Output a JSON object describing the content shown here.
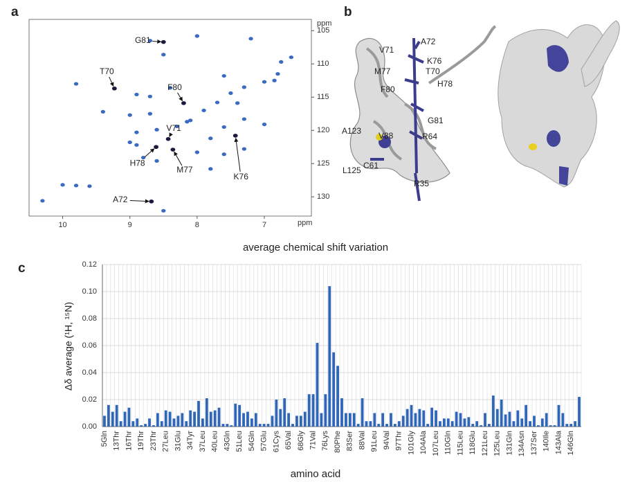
{
  "panel_labels": {
    "a": "a",
    "b": "b",
    "c": "c"
  },
  "structure": {
    "labels": [
      "V71",
      "A72",
      "K76",
      "M77",
      "T70",
      "H78",
      "F80",
      "G81",
      "A123",
      "V88",
      "R64",
      "C61",
      "L125",
      "R35"
    ]
  },
  "chart_data": [
    {
      "type": "scatter",
      "x_unit": "ppm",
      "y_unit": "ppm",
      "color": "#3a6bc0",
      "xlim": [
        10.5,
        6.3
      ],
      "ylim": [
        103.3,
        132.9
      ],
      "xticks": [
        10,
        9,
        8,
        7
      ],
      "yticks": [
        105,
        110,
        115,
        120,
        125,
        130
      ],
      "x": [
        10.3,
        10.0,
        9.8,
        9.6,
        9.8,
        9.4,
        9.23,
        8.7,
        8.5,
        8.5,
        8.0,
        7.2,
        6.6,
        6.75,
        6.8,
        6.85,
        7.0,
        7.3,
        7.6,
        7.5,
        7.7,
        7.9,
        8.1,
        8.3,
        8.6,
        8.9,
        9.0,
        8.9,
        8.7,
        8.4,
        8.2,
        8.43,
        8.61,
        8.36,
        7.43,
        7.0,
        7.3,
        7.6,
        7.8,
        8.0,
        7.6,
        8.8,
        8.6,
        8.9,
        9.0,
        7.3,
        7.8,
        8.68,
        8.5,
        8.15,
        7.4,
        8.7
      ],
      "y": [
        130.6,
        128.2,
        128.3,
        128.4,
        113.0,
        117.2,
        113.7,
        106.5,
        106.7,
        108.6,
        105.8,
        106.2,
        109.0,
        109.7,
        111.5,
        112.5,
        112.7,
        113.5,
        111.8,
        114.4,
        115.8,
        117.0,
        118.5,
        119.4,
        119.9,
        120.3,
        117.7,
        114.6,
        114.9,
        113.6,
        115.9,
        121.3,
        122.5,
        122.9,
        120.8,
        119.1,
        118.3,
        119.5,
        121.2,
        123.3,
        123.6,
        124.1,
        124.6,
        122.2,
        121.8,
        122.8,
        125.8,
        130.7,
        132.1,
        118.7,
        115.9,
        117.5
      ],
      "annotations": [
        {
          "label": "G81",
          "x": 8.5,
          "y": 106.7
        },
        {
          "label": "T70",
          "x": 9.23,
          "y": 113.7
        },
        {
          "label": "F80",
          "x": 8.2,
          "y": 115.9
        },
        {
          "label": "V71",
          "x": 8.43,
          "y": 121.3
        },
        {
          "label": "H78",
          "x": 8.61,
          "y": 122.5
        },
        {
          "label": "M77",
          "x": 8.36,
          "y": 122.9
        },
        {
          "label": "K76",
          "x": 7.43,
          "y": 120.8
        },
        {
          "label": "A72",
          "x": 8.68,
          "y": 130.7
        }
      ]
    },
    {
      "type": "bar",
      "title": "average chemical shift variation",
      "x_label": "amino acid",
      "y_label": "Δδ average (¹H, ¹⁵N)",
      "color": "#2f66b8",
      "ylim": [
        0,
        0.12
      ],
      "grid": true,
      "yticks": [
        {
          "value": 0,
          "label": "0.00"
        },
        {
          "value": 0.02,
          "label": "0.02"
        },
        {
          "value": 0.04,
          "label": "0.04"
        },
        {
          "value": 0.06,
          "label": "0.06"
        },
        {
          "value": 0.08,
          "label": "0.08"
        },
        {
          "value": 0.1,
          "label": "0.10"
        },
        {
          "value": 0.12,
          "label": "0.12"
        }
      ],
      "categories": [
        "5Gln",
        null,
        null,
        "13Thr",
        null,
        null,
        "16Thr",
        null,
        null,
        "19Thr",
        null,
        null,
        "23Thr",
        null,
        null,
        "27Leu",
        null,
        null,
        "31Glu",
        null,
        null,
        "34Tyr",
        null,
        null,
        "37Leu",
        null,
        null,
        "40Leu",
        null,
        null,
        "43Gln",
        null,
        null,
        "51Leu",
        null,
        null,
        "54Gln",
        null,
        null,
        "57Glu",
        null,
        null,
        "61Cys",
        null,
        null,
        "65Val",
        null,
        null,
        "68Gly",
        null,
        null,
        "71Val",
        null,
        null,
        "76Lys",
        null,
        null,
        "80Phe",
        null,
        null,
        "83Ser",
        null,
        null,
        "88Val",
        null,
        null,
        "91Leu",
        null,
        null,
        "94Val",
        null,
        null,
        "97Thr",
        null,
        null,
        "101Gly",
        null,
        null,
        "104Ala",
        null,
        null,
        "107Leu",
        null,
        null,
        "110Gln",
        null,
        null,
        "115Leu",
        null,
        null,
        "118Glu",
        null,
        null,
        "121Leu",
        null,
        null,
        "125Leu",
        null,
        null,
        "131Gln",
        null,
        null,
        "134Asn",
        null,
        null,
        "137Ser",
        null,
        null,
        "140Ile",
        null,
        null,
        "143Ala",
        null,
        null,
        "146Gln",
        null,
        null
      ],
      "values": [
        0.008,
        0.016,
        0.011,
        0.016,
        0.004,
        0.011,
        0.014,
        0.004,
        0.006,
        0.001,
        0.002,
        0.006,
        0.001,
        0.01,
        0.004,
        0.012,
        0.011,
        0.006,
        0.008,
        0.01,
        0.004,
        0.012,
        0.011,
        0.019,
        0.006,
        0.021,
        0.011,
        0.012,
        0.014,
        0.002,
        0.002,
        0.001,
        0.017,
        0.016,
        0.01,
        0.011,
        0.006,
        0.01,
        0.002,
        0.002,
        0.002,
        0.008,
        0.02,
        0.013,
        0.021,
        0.01,
        0.002,
        0.008,
        0.008,
        0.011,
        0.024,
        0.024,
        0.062,
        0.01,
        0.024,
        0.104,
        0.055,
        0.045,
        0.021,
        0.01,
        0.01,
        0.01,
        0.002,
        0.021,
        0.004,
        0.004,
        0.01,
        0.002,
        0.01,
        0.002,
        0.01,
        0.002,
        0.004,
        0.008,
        0.013,
        0.016,
        0.01,
        0.013,
        0.012,
        0.002,
        0.014,
        0.012,
        0.004,
        0.006,
        0.006,
        0.004,
        0.011,
        0.01,
        0.006,
        0.007,
        0.002,
        0.004,
        0.001,
        0.01,
        0.002,
        0.023,
        0.013,
        0.02,
        0.009,
        0.011,
        0.004,
        0.012,
        0.006,
        0.016,
        0.004,
        0.008,
        0.001,
        0.006,
        0.01,
        0.001,
        0.001,
        0.016,
        0.01,
        0.002,
        0.002,
        0.004,
        0.022
      ]
    }
  ]
}
